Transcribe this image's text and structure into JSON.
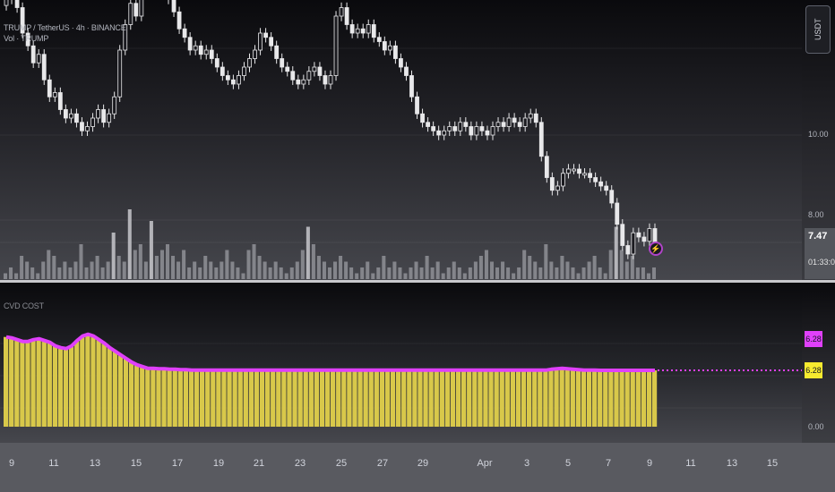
{
  "legend": {
    "symbol_line": "TRUMP / TetherUS · 4h · BINANCE",
    "volume_line": "Vol · TRUMP",
    "indicator_line": "CVD COST"
  },
  "price_axis": {
    "currency_button": "USDT",
    "ticks": [
      "10.00",
      "8.00"
    ],
    "current_price": "7.47",
    "countdown": "01:33:01"
  },
  "indicator_axis": {
    "ticks": [
      "0.00"
    ],
    "label_magenta": "6.28",
    "label_yellow": "6.28"
  },
  "time_axis": {
    "ticks": [
      "9",
      "11",
      "13",
      "15",
      "17",
      "19",
      "21",
      "23",
      "25",
      "27",
      "29",
      "Apr",
      "3",
      "5",
      "7",
      "9",
      "11",
      "13",
      "15"
    ]
  },
  "icons": {
    "flash": "lightning-icon"
  },
  "colors": {
    "candle": "#e8e8ea",
    "volume": "#8f9096",
    "volume_spike": "#c8c8cc",
    "histogram": "#d8c84a",
    "indicator_line": "#e040fb",
    "accent_magenta": "#e040fb",
    "accent_yellow": "#f6ea2f"
  },
  "chart_data": [
    {
      "type": "candlestick",
      "y_ticks": [
        "10.00",
        "8.00"
      ],
      "close_series": [
        13.2,
        13.6,
        13.0,
        12.4,
        12.1,
        11.7,
        11.9,
        11.3,
        10.9,
        11.0,
        10.6,
        10.4,
        10.5,
        10.3,
        10.1,
        10.2,
        10.4,
        10.6,
        10.3,
        10.5,
        10.9,
        12.0,
        12.6,
        13.1,
        12.8,
        13.3,
        13.6,
        13.4,
        13.8,
        13.5,
        13.2,
        12.9,
        12.5,
        12.3,
        12.0,
        12.1,
        11.9,
        12.0,
        11.8,
        11.6,
        11.4,
        11.3,
        11.2,
        11.4,
        11.6,
        11.8,
        12.0,
        12.4,
        12.3,
        12.1,
        11.8,
        11.6,
        11.5,
        11.3,
        11.2,
        11.3,
        11.5,
        11.6,
        11.4,
        11.2,
        11.4,
        12.8,
        13.0,
        12.6,
        12.4,
        12.5,
        12.4,
        12.6,
        12.3,
        12.2,
        12.0,
        12.1,
        11.8,
        11.6,
        11.4,
        10.9,
        10.5,
        10.3,
        10.2,
        10.1,
        10.0,
        10.1,
        10.2,
        10.1,
        10.3,
        10.2,
        10.0,
        10.2,
        10.1,
        10.0,
        10.2,
        10.3,
        10.2,
        10.4,
        10.3,
        10.2,
        10.4,
        10.5,
        10.3,
        9.5,
        9.0,
        8.7,
        8.8,
        9.1,
        9.2,
        9.2,
        9.1,
        9.1,
        9.0,
        8.9,
        8.8,
        8.7,
        8.4,
        7.9,
        7.4,
        7.2,
        7.7,
        7.6,
        7.5,
        7.8,
        7.47
      ],
      "volume_series": [
        1,
        2,
        1,
        4,
        3,
        2,
        1,
        3,
        5,
        4,
        2,
        3,
        2,
        3,
        6,
        2,
        3,
        4,
        2,
        3,
        8,
        4,
        3,
        12,
        5,
        6,
        3,
        10,
        4,
        5,
        6,
        4,
        3,
        5,
        2,
        3,
        2,
        4,
        3,
        2,
        3,
        5,
        3,
        2,
        1,
        5,
        6,
        4,
        3,
        2,
        3,
        2,
        1,
        2,
        3,
        5,
        9,
        6,
        4,
        3,
        2,
        3,
        4,
        3,
        2,
        1,
        2,
        3,
        1,
        2,
        4,
        2,
        3,
        2,
        1,
        2,
        3,
        2,
        4,
        2,
        3,
        1,
        2,
        3,
        2,
        1,
        2,
        3,
        4,
        5,
        3,
        2,
        3,
        2,
        1,
        2,
        5,
        4,
        3,
        2,
        6,
        3,
        2,
        4,
        3,
        2,
        1,
        2,
        3,
        4,
        2,
        1,
        5,
        9,
        5,
        3,
        4,
        2,
        2,
        1,
        2
      ]
    },
    {
      "type": "area",
      "name": "CVD COST",
      "y_ticks": [
        "0.00"
      ],
      "last_value": 6.28,
      "values": [
        10.0,
        9.9,
        9.7,
        9.5,
        9.5,
        9.7,
        9.8,
        9.6,
        9.4,
        9.0,
        8.8,
        8.7,
        9.0,
        9.6,
        10.1,
        10.3,
        10.1,
        9.7,
        9.3,
        8.8,
        8.4,
        8.0,
        7.6,
        7.2,
        6.9,
        6.7,
        6.5,
        6.5,
        6.45,
        6.45,
        6.4,
        6.4,
        6.35,
        6.35,
        6.3,
        6.3,
        6.3,
        6.3,
        6.3,
        6.3,
        6.3,
        6.3,
        6.3,
        6.3,
        6.3,
        6.3,
        6.3,
        6.3,
        6.3,
        6.3,
        6.3,
        6.3,
        6.3,
        6.3,
        6.3,
        6.3,
        6.3,
        6.3,
        6.3,
        6.3,
        6.3,
        6.3,
        6.3,
        6.3,
        6.3,
        6.3,
        6.3,
        6.3,
        6.3,
        6.3,
        6.3,
        6.3,
        6.3,
        6.3,
        6.3,
        6.3,
        6.3,
        6.3,
        6.3,
        6.3,
        6.3,
        6.3,
        6.3,
        6.3,
        6.3,
        6.3,
        6.3,
        6.3,
        6.3,
        6.3,
        6.3,
        6.3,
        6.3,
        6.3,
        6.3,
        6.3,
        6.3,
        6.3,
        6.3,
        6.3,
        6.4,
        6.45,
        6.5,
        6.45,
        6.4,
        6.35,
        6.3,
        6.3,
        6.3,
        6.28,
        6.28,
        6.28,
        6.28,
        6.28,
        6.28,
        6.28,
        6.28,
        6.28,
        6.28,
        6.28
      ]
    }
  ]
}
